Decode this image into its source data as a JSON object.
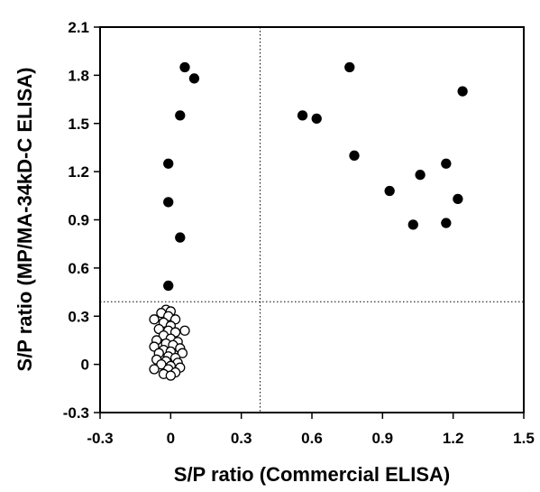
{
  "chart_data": {
    "type": "scatter",
    "title": "",
    "xlabel": "S/P ratio (Commercial ELISA)",
    "ylabel": "S/P ratio (MP/MA-34kD-C ELISA)",
    "xlim": [
      -0.3,
      1.5
    ],
    "ylim": [
      -0.3,
      2.1
    ],
    "x_ticks": [
      -0.3,
      0,
      0.3,
      0.6,
      0.9,
      1.2,
      1.5
    ],
    "y_ticks": [
      -0.3,
      0,
      0.3,
      0.6,
      0.9,
      1.2,
      1.5,
      1.8,
      2.1
    ],
    "x_tick_labels": [
      "-0.3",
      "0",
      "0.3",
      "0.6",
      "0.9",
      "1.2",
      "1.5"
    ],
    "y_tick_labels": [
      "-0.3",
      "0",
      "0.3",
      "0.6",
      "0.9",
      "1.2",
      "1.5",
      "1.8",
      "2.1"
    ],
    "grid": false,
    "cutoff_lines": {
      "x": 0.38,
      "y": 0.39,
      "style": "dotted"
    },
    "series": [
      {
        "fill": "filled",
        "color": "#000000",
        "points": [
          {
            "x": 0.06,
            "y": 1.85
          },
          {
            "x": 0.1,
            "y": 1.78
          },
          {
            "x": 0.04,
            "y": 1.55
          },
          {
            "x": -0.01,
            "y": 1.25
          },
          {
            "x": -0.01,
            "y": 1.01
          },
          {
            "x": 0.04,
            "y": 0.79
          },
          {
            "x": -0.01,
            "y": 0.49
          },
          {
            "x": 0.76,
            "y": 1.85
          },
          {
            "x": 1.24,
            "y": 1.7
          },
          {
            "x": 0.56,
            "y": 1.55
          },
          {
            "x": 0.62,
            "y": 1.53
          },
          {
            "x": 0.78,
            "y": 1.3
          },
          {
            "x": 1.17,
            "y": 1.25
          },
          {
            "x": 1.06,
            "y": 1.18
          },
          {
            "x": 0.93,
            "y": 1.08
          },
          {
            "x": 1.22,
            "y": 1.03
          },
          {
            "x": 1.03,
            "y": 0.87
          },
          {
            "x": 1.17,
            "y": 0.88
          }
        ]
      },
      {
        "fill": "open",
        "color": "#000000",
        "points": [
          {
            "x": -0.02,
            "y": 0.34
          },
          {
            "x": 0.0,
            "y": 0.33
          },
          {
            "x": -0.04,
            "y": 0.32
          },
          {
            "x": -0.01,
            "y": 0.3
          },
          {
            "x": -0.07,
            "y": 0.28
          },
          {
            "x": 0.02,
            "y": 0.28
          },
          {
            "x": -0.03,
            "y": 0.26
          },
          {
            "x": 0.0,
            "y": 0.24
          },
          {
            "x": -0.05,
            "y": 0.22
          },
          {
            "x": -0.01,
            "y": 0.21
          },
          {
            "x": 0.06,
            "y": 0.21
          },
          {
            "x": 0.02,
            "y": 0.2
          },
          {
            "x": -0.03,
            "y": 0.18
          },
          {
            "x": 0.0,
            "y": 0.16
          },
          {
            "x": -0.06,
            "y": 0.15
          },
          {
            "x": 0.03,
            "y": 0.14
          },
          {
            "x": -0.02,
            "y": 0.13
          },
          {
            "x": 0.01,
            "y": 0.12
          },
          {
            "x": -0.07,
            "y": 0.11
          },
          {
            "x": 0.04,
            "y": 0.1
          },
          {
            "x": -0.03,
            "y": 0.09
          },
          {
            "x": 0.0,
            "y": 0.08
          },
          {
            "x": -0.05,
            "y": 0.07
          },
          {
            "x": 0.05,
            "y": 0.07
          },
          {
            "x": -0.01,
            "y": 0.05
          },
          {
            "x": 0.02,
            "y": 0.04
          },
          {
            "x": -0.06,
            "y": 0.03
          },
          {
            "x": -0.02,
            "y": 0.02
          },
          {
            "x": 0.03,
            "y": 0.01
          },
          {
            "x": -0.04,
            "y": 0.0
          },
          {
            "x": 0.0,
            "y": -0.01
          },
          {
            "x": 0.04,
            "y": -0.02
          },
          {
            "x": -0.07,
            "y": -0.03
          },
          {
            "x": -0.01,
            "y": -0.03
          },
          {
            "x": 0.02,
            "y": -0.05
          },
          {
            "x": -0.03,
            "y": -0.06
          },
          {
            "x": 0.0,
            "y": -0.07
          }
        ]
      }
    ]
  }
}
